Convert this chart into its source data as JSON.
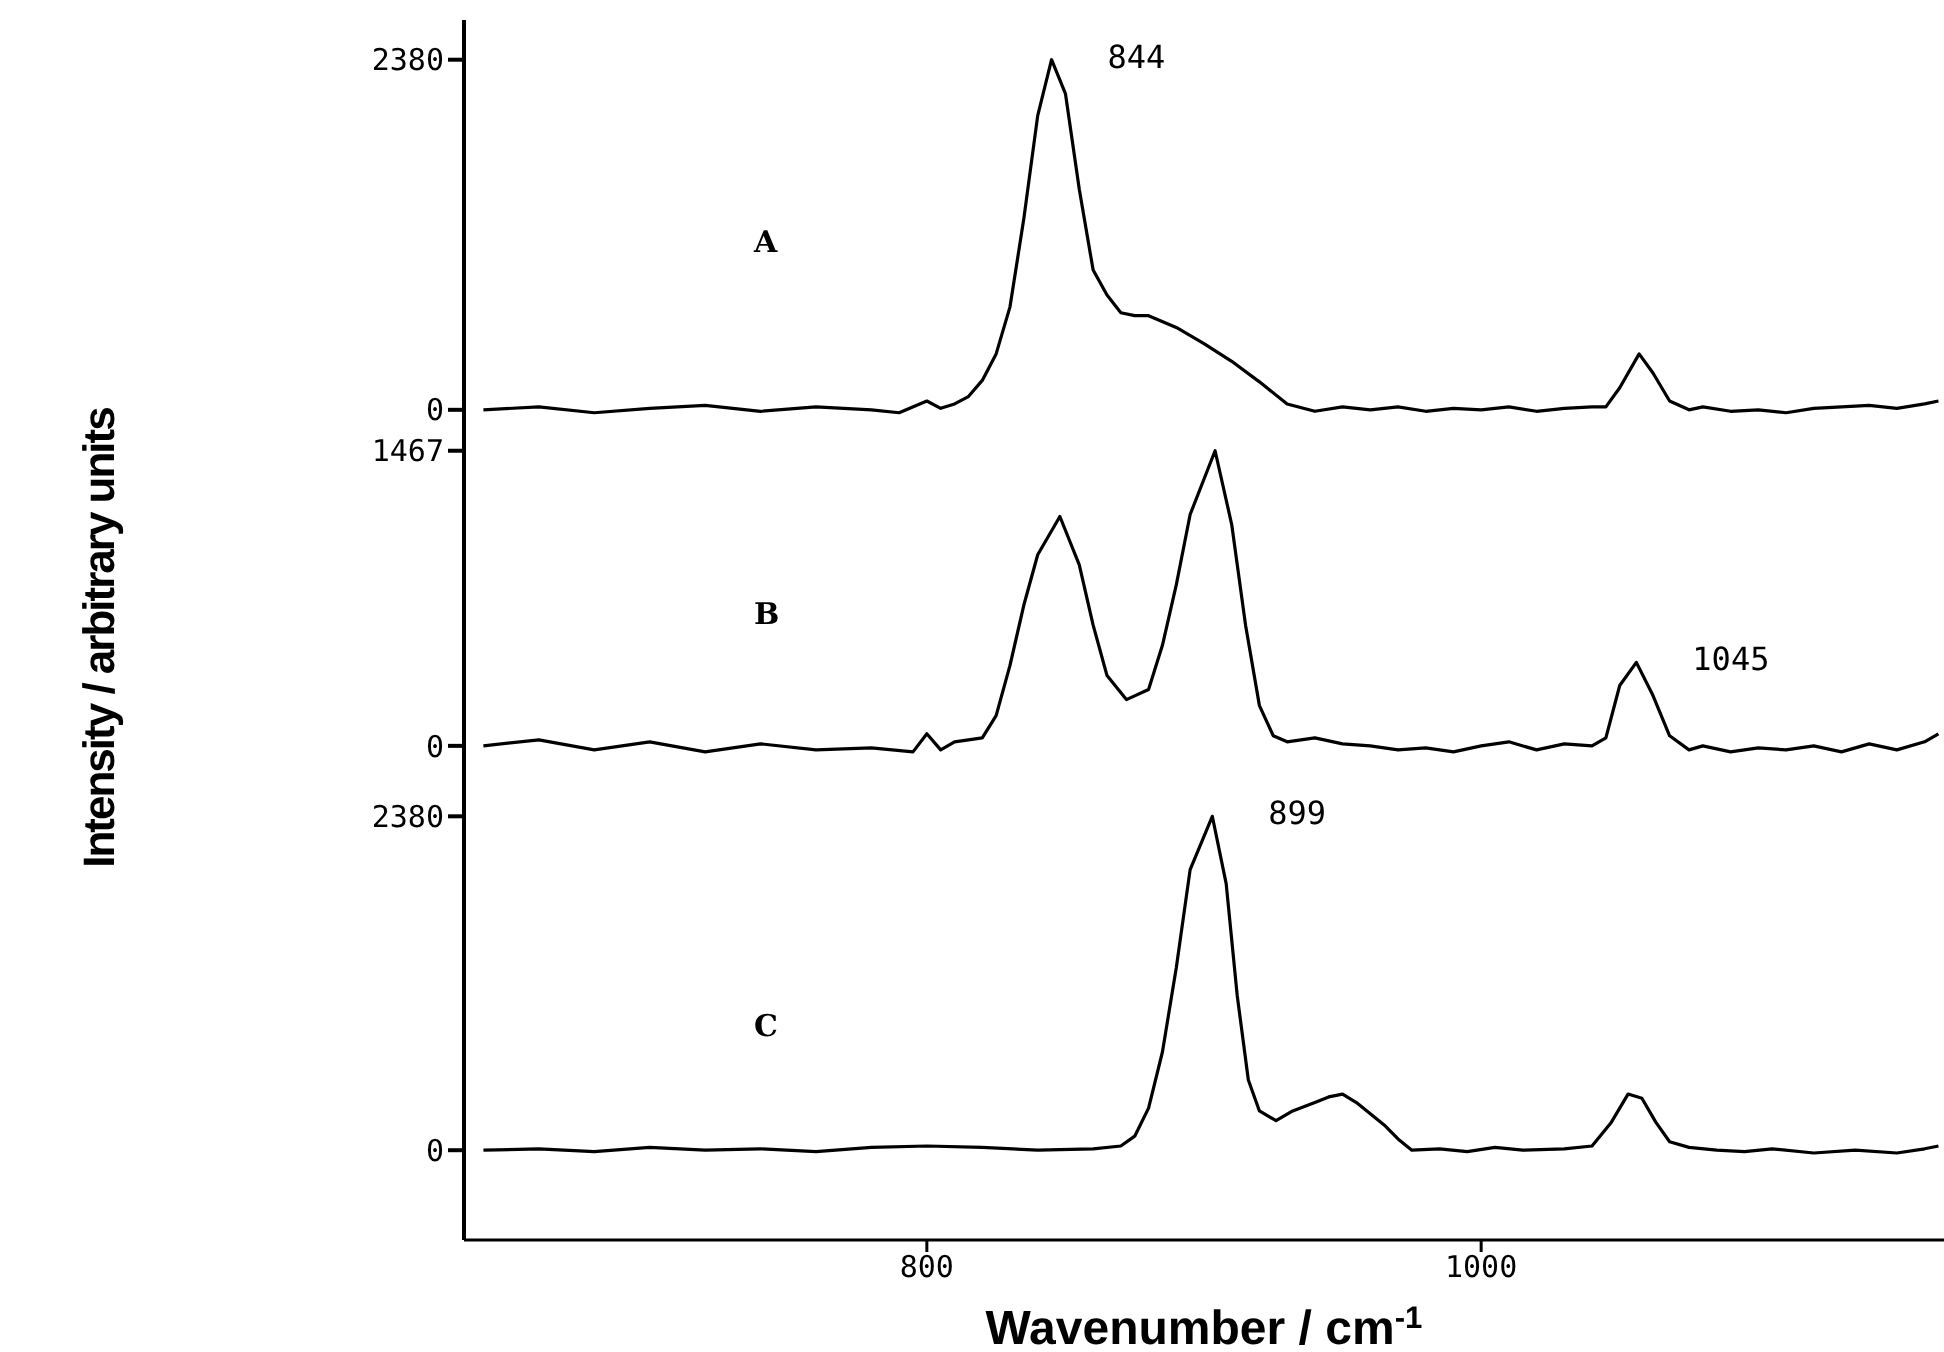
{
  "chart_data": [
    {
      "type": "line",
      "xlim": [
        633,
        1167
      ],
      "ylim": [
        -110,
        2650
      ],
      "yticks": [
        0,
        2380
      ],
      "tick_labels": "y",
      "annotations": [
        "A",
        {
          "text": "844",
          "x": 845,
          "y": 2380
        }
      ],
      "x": [
        640,
        660,
        680,
        700,
        720,
        740,
        760,
        780,
        790,
        800,
        805,
        810,
        815,
        820,
        825,
        830,
        835,
        840,
        845,
        850,
        855,
        860,
        865,
        870,
        875,
        880,
        890,
        900,
        910,
        920,
        930,
        940,
        950,
        960,
        970,
        980,
        990,
        1000,
        1010,
        1020,
        1030,
        1040,
        1045,
        1050,
        1057,
        1062,
        1068,
        1075,
        1080,
        1090,
        1100,
        1110,
        1120,
        1130,
        1140,
        1150,
        1160,
        1165
      ],
      "series": [
        {
          "color": "#000000",
          "values": [
            0,
            20,
            -20,
            10,
            30,
            -10,
            20,
            0,
            -20,
            60,
            10,
            40,
            90,
            200,
            380,
            700,
            1300,
            2000,
            2380,
            2150,
            1500,
            950,
            780,
            660,
            640,
            640,
            560,
            450,
            330,
            190,
            40,
            -10,
            20,
            0,
            20,
            -10,
            10,
            0,
            20,
            -10,
            10,
            20,
            20,
            150,
            380,
            250,
            60,
            0,
            20,
            -10,
            0,
            -20,
            10,
            20,
            30,
            10,
            40,
            60
          ]
        }
      ]
    },
    {
      "type": "line",
      "xlim": [
        633,
        1167
      ],
      "ylim": [
        -120,
        1590
      ],
      "yticks": [
        0,
        1467
      ],
      "tick_labels": "y",
      "ylabel": "Intensity / arbitrary units",
      "annotations": [
        "B",
        {
          "text": "1045",
          "x": 1056,
          "y": 415
        }
      ],
      "x": [
        640,
        660,
        680,
        700,
        720,
        740,
        760,
        780,
        795,
        800,
        805,
        810,
        820,
        825,
        830,
        835,
        840,
        848,
        855,
        860,
        865,
        872,
        880,
        885,
        890,
        895,
        904,
        910,
        915,
        920,
        925,
        930,
        940,
        950,
        960,
        970,
        980,
        990,
        1000,
        1010,
        1020,
        1030,
        1040,
        1045,
        1050,
        1056,
        1062,
        1068,
        1075,
        1080,
        1090,
        1100,
        1110,
        1120,
        1130,
        1140,
        1150,
        1160,
        1165
      ],
      "series": [
        {
          "color": "#000000",
          "values": [
            0,
            30,
            -20,
            20,
            -30,
            10,
            -20,
            -10,
            -30,
            60,
            -20,
            20,
            40,
            150,
            400,
            700,
            950,
            1140,
            900,
            600,
            350,
            230,
            280,
            500,
            800,
            1150,
            1467,
            1100,
            600,
            200,
            50,
            20,
            40,
            10,
            0,
            -20,
            -10,
            -30,
            0,
            20,
            -20,
            10,
            0,
            40,
            300,
            415,
            250,
            50,
            -20,
            0,
            -30,
            -10,
            -20,
            0,
            -30,
            10,
            -20,
            20,
            60
          ]
        }
      ]
    },
    {
      "type": "line",
      "xlim": [
        633,
        1167
      ],
      "xticks": [
        800,
        1000
      ],
      "ylim": [
        -640,
        2710
      ],
      "yticks": [
        0,
        2380
      ],
      "xlabel": "Wavenumber / cm$^{-1}$",
      "annotations": [
        "C",
        {
          "text": "899",
          "x": 903,
          "y": 2380
        }
      ],
      "x": [
        640,
        660,
        680,
        700,
        720,
        740,
        760,
        780,
        800,
        820,
        840,
        860,
        870,
        875,
        880,
        885,
        890,
        895,
        903,
        908,
        912,
        916,
        920,
        926,
        932,
        940,
        945,
        950,
        955,
        960,
        965,
        970,
        975,
        985,
        995,
        1005,
        1015,
        1030,
        1040,
        1047,
        1053,
        1058,
        1063,
        1068,
        1075,
        1085,
        1095,
        1105,
        1120,
        1135,
        1150,
        1160,
        1165
      ],
      "series": [
        {
          "color": "#000000",
          "values": [
            0,
            10,
            -10,
            20,
            0,
            10,
            -10,
            20,
            30,
            20,
            0,
            10,
            30,
            100,
            300,
            700,
            1300,
            2000,
            2380,
            1900,
            1100,
            500,
            280,
            210,
            280,
            340,
            380,
            400,
            340,
            260,
            180,
            80,
            0,
            10,
            -10,
            20,
            0,
            10,
            30,
            200,
            400,
            370,
            200,
            60,
            20,
            0,
            -10,
            10,
            -20,
            0,
            -20,
            10,
            30
          ]
        }
      ]
    }
  ]
}
